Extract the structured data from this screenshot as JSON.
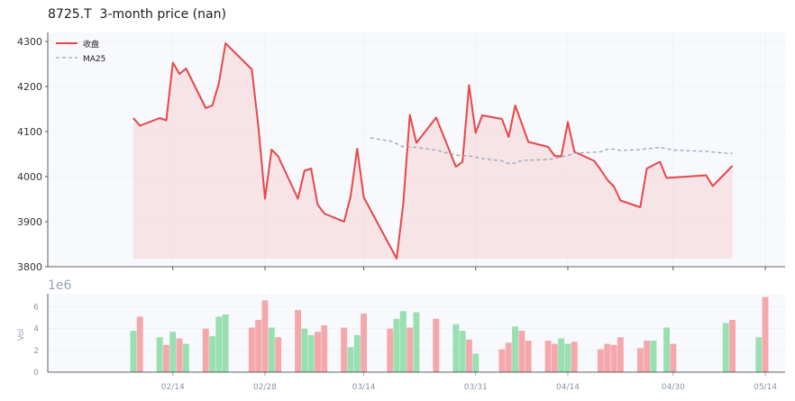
{
  "title": "8725.T  3-month price (nan)",
  "colors": {
    "price_line": "#e5474b",
    "price_fill": "#f4c9cc",
    "ma_line": "#98a3ba",
    "vol_up": "#98e0b0",
    "vol_down": "#f4a8ac",
    "plot_bg": "#f8f9fc",
    "grid": "#e8ebf2"
  },
  "chart_data": [
    {
      "type": "line",
      "panel": "price",
      "ylim": [
        3800,
        4320
      ],
      "yticks": [
        "3800",
        "3900",
        "4000",
        "4100",
        "4200",
        "4300"
      ],
      "legend": {
        "placement": "top-left",
        "entries": [
          "收盘",
          "MA25"
        ]
      },
      "grid": true,
      "series": [
        {
          "name": "收盘",
          "points": [
            [
              "02-08",
              4130
            ],
            [
              "02-09",
              4113
            ],
            [
              "02-12",
              4130
            ],
            [
              "02-13",
              4125
            ],
            [
              "02-14",
              4253
            ],
            [
              "02-15",
              4228
            ],
            [
              "02-16",
              4240
            ],
            [
              "02-19",
              4152
            ],
            [
              "02-20",
              4158
            ],
            [
              "02-21",
              4208
            ],
            [
              "02-22",
              4296
            ],
            [
              "02-26",
              4238
            ],
            [
              "02-27",
              4110
            ],
            [
              "02-28",
              3951
            ],
            [
              "02-29",
              4060
            ],
            [
              "03-01",
              4045
            ],
            [
              "03-04",
              3951
            ],
            [
              "03-05",
              4013
            ],
            [
              "03-06",
              4018
            ],
            [
              "03-07",
              3938
            ],
            [
              "03-08",
              3918
            ],
            [
              "03-11",
              3900
            ],
            [
              "03-12",
              3956
            ],
            [
              "03-13",
              4062
            ],
            [
              "03-14",
              3954
            ],
            [
              "03-19",
              3818
            ],
            [
              "03-20",
              3940
            ],
            [
              "03-21",
              4137
            ],
            [
              "03-22",
              4075
            ],
            [
              "03-25",
              4131
            ],
            [
              "03-28",
              4022
            ],
            [
              "03-29",
              4033
            ],
            [
              "03-30",
              4203
            ],
            [
              "03-31",
              4097
            ],
            [
              "04-01",
              4136
            ],
            [
              "04-04",
              4128
            ],
            [
              "04-05",
              4088
            ],
            [
              "04-06",
              4158
            ],
            [
              "04-08",
              4077
            ],
            [
              "04-11",
              4066
            ],
            [
              "04-12",
              4046
            ],
            [
              "04-13",
              4045
            ],
            [
              "04-14",
              4121
            ],
            [
              "04-15",
              4055
            ],
            [
              "04-18",
              4035
            ],
            [
              "04-19",
              4015
            ],
            [
              "04-20",
              3993
            ],
            [
              "04-21",
              3978
            ],
            [
              "04-22",
              3947
            ],
            [
              "04-25",
              3932
            ],
            [
              "04-26",
              4018
            ],
            [
              "04-28",
              4033
            ],
            [
              "04-29",
              3997
            ],
            [
              "05-05",
              4003
            ],
            [
              "05-06",
              3979
            ],
            [
              "05-09",
              4024
            ]
          ]
        },
        {
          "name": "MA25",
          "points": [
            [
              "03-15",
              4086
            ],
            [
              "03-18",
              4079
            ],
            [
              "03-19",
              4073
            ],
            [
              "03-20",
              4066
            ],
            [
              "03-22",
              4065
            ],
            [
              "03-25",
              4059
            ],
            [
              "03-28",
              4048
            ],
            [
              "03-29",
              4046
            ],
            [
              "03-30",
              4046
            ],
            [
              "04-01",
              4040
            ],
            [
              "04-04",
              4035
            ],
            [
              "04-05",
              4029
            ],
            [
              "04-06",
              4030
            ],
            [
              "04-07",
              4036
            ],
            [
              "04-11",
              4038
            ],
            [
              "04-12",
              4040
            ],
            [
              "04-14",
              4047
            ],
            [
              "04-15",
              4052
            ],
            [
              "04-19",
              4055
            ],
            [
              "04-20",
              4061
            ],
            [
              "04-21",
              4061
            ],
            [
              "04-22",
              4058
            ],
            [
              "04-25",
              4060
            ],
            [
              "04-28",
              4065
            ],
            [
              "04-29",
              4062
            ],
            [
              "04-30",
              4059
            ],
            [
              "05-05",
              4056
            ],
            [
              "05-08",
              4052
            ],
            [
              "05-09",
              4052
            ]
          ]
        }
      ]
    },
    {
      "type": "bar",
      "panel": "volume",
      "ylabel": "Vol",
      "scale_label": "1e6",
      "ylim": [
        0,
        7.2
      ],
      "yticks": [
        "0",
        "2",
        "4",
        "6"
      ],
      "xticks": [
        "02/14",
        "02/28",
        "03/14",
        "03/31",
        "04/14",
        "04/30",
        "05/14"
      ],
      "grid": true,
      "bars": [
        [
          "02-08",
          3.8,
          "up"
        ],
        [
          "02-09",
          5.1,
          "down"
        ],
        [
          "02-12",
          3.2,
          "up"
        ],
        [
          "02-13",
          2.5,
          "down"
        ],
        [
          "02-14",
          3.7,
          "up"
        ],
        [
          "02-15",
          3.1,
          "down"
        ],
        [
          "02-16",
          2.6,
          "up"
        ],
        [
          "02-19",
          4.0,
          "down"
        ],
        [
          "02-20",
          3.3,
          "up"
        ],
        [
          "02-21",
          5.1,
          "up"
        ],
        [
          "02-22",
          5.3,
          "up"
        ],
        [
          "02-26",
          4.1,
          "down"
        ],
        [
          "02-27",
          4.8,
          "down"
        ],
        [
          "02-28",
          6.6,
          "down"
        ],
        [
          "02-29",
          4.1,
          "up"
        ],
        [
          "03-01",
          3.2,
          "down"
        ],
        [
          "03-04",
          5.7,
          "down"
        ],
        [
          "03-05",
          4.0,
          "up"
        ],
        [
          "03-06",
          3.4,
          "up"
        ],
        [
          "03-07",
          3.7,
          "down"
        ],
        [
          "03-08",
          4.3,
          "down"
        ],
        [
          "03-11",
          4.1,
          "down"
        ],
        [
          "03-12",
          2.3,
          "up"
        ],
        [
          "03-13",
          3.4,
          "up"
        ],
        [
          "03-14",
          5.4,
          "down"
        ],
        [
          "03-18",
          4.0,
          "down"
        ],
        [
          "03-19",
          4.9,
          "up"
        ],
        [
          "03-20",
          5.6,
          "up"
        ],
        [
          "03-21",
          4.1,
          "down"
        ],
        [
          "03-22",
          5.5,
          "up"
        ],
        [
          "03-25",
          4.9,
          "down"
        ],
        [
          "03-28",
          4.4,
          "up"
        ],
        [
          "03-29",
          3.8,
          "up"
        ],
        [
          "03-30",
          3.0,
          "down"
        ],
        [
          "03-31",
          1.7,
          "up"
        ],
        [
          "04-04",
          2.1,
          "down"
        ],
        [
          "04-05",
          2.7,
          "down"
        ],
        [
          "04-06",
          4.2,
          "up"
        ],
        [
          "04-07",
          3.8,
          "down"
        ],
        [
          "04-08",
          2.9,
          "down"
        ],
        [
          "04-11",
          2.9,
          "down"
        ],
        [
          "04-12",
          2.6,
          "down"
        ],
        [
          "04-13",
          3.1,
          "up"
        ],
        [
          "04-14",
          2.6,
          "up"
        ],
        [
          "04-15",
          2.8,
          "down"
        ],
        [
          "04-19",
          2.1,
          "down"
        ],
        [
          "04-20",
          2.6,
          "down"
        ],
        [
          "04-21",
          2.5,
          "down"
        ],
        [
          "04-22",
          3.2,
          "down"
        ],
        [
          "04-25",
          2.2,
          "down"
        ],
        [
          "04-26",
          2.9,
          "down"
        ],
        [
          "04-27",
          2.9,
          "up"
        ],
        [
          "04-29",
          4.1,
          "up"
        ],
        [
          "04-30",
          2.6,
          "down"
        ],
        [
          "05-08",
          4.5,
          "up"
        ],
        [
          "05-09",
          4.8,
          "down"
        ],
        [
          "05-13",
          3.2,
          "up"
        ],
        [
          "05-14",
          6.9,
          "down"
        ]
      ]
    }
  ]
}
